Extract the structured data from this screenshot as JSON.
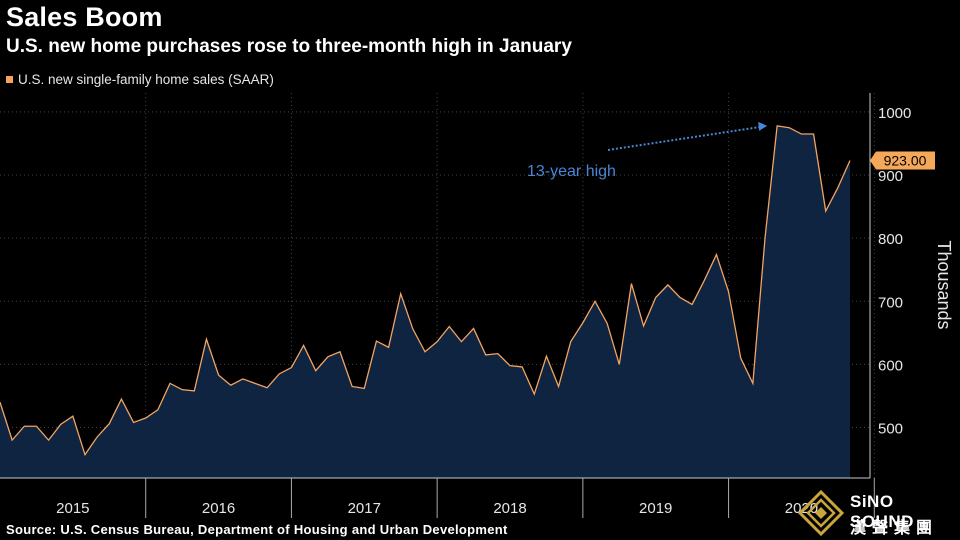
{
  "header": {
    "title": "Sales Boom",
    "subtitle": "U.S. new home purchases rose to three-month high in January"
  },
  "legend": {
    "label": "U.S. new single-family home sales (SAAR)",
    "color": "#f4a460"
  },
  "source": "Source: U.S. Census Bureau, Department of Housing and Urban Development",
  "logo": {
    "name": "SiNO SOUND",
    "cjk": "漢聲集團"
  },
  "colors": {
    "background": "#000000",
    "area_fill": "#0e2440",
    "line": "#f4a460",
    "annotation": "#4a86d6",
    "grid": "#444444"
  },
  "chart_data": {
    "type": "area",
    "title": "Sales Boom",
    "ylabel": "Thousands",
    "ylim": [
      420,
      1030
    ],
    "yticks": [
      500,
      600,
      700,
      800,
      900,
      1000
    ],
    "year_labels": [
      "2015",
      "2016",
      "2017",
      "2018",
      "2019",
      "2020"
    ],
    "x_start": "2015-01",
    "x_end": "2021-01",
    "series": [
      {
        "name": "U.S. new single-family home sales (SAAR)",
        "values": [
          540,
          480,
          502,
          502,
          480,
          505,
          518,
          457,
          485,
          506,
          545,
          508,
          515,
          528,
          570,
          560,
          558,
          640,
          583,
          567,
          577,
          570,
          563,
          585,
          595,
          630,
          590,
          612,
          620,
          565,
          562,
          637,
          627,
          712,
          656,
          620,
          636,
          660,
          636,
          657,
          615,
          617,
          598,
          596,
          553,
          613,
          565,
          636,
          666,
          700,
          665,
          600,
          728,
          661,
          706,
          726,
          706,
          695,
          733,
          774,
          715,
          610,
          570,
          800,
          978,
          975,
          965,
          965,
          843,
          880,
          923
        ]
      }
    ],
    "last_value_label": "923.00",
    "annotation": {
      "text": "13-year high",
      "target_index": 64,
      "target_value": 978
    }
  }
}
